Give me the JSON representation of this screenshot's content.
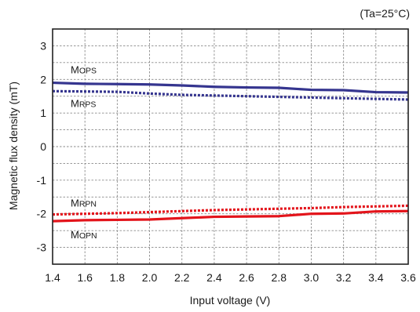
{
  "chart_data": {
    "type": "line",
    "condition_label": "(Ta=25°C)",
    "xlabel": "Input voltage (V)",
    "ylabel": "Magnetic flux density (mT)",
    "xlim": [
      1.4,
      3.6
    ],
    "ylim": [
      -3.5,
      3.5
    ],
    "xticks": [
      "1.4",
      "1.6",
      "1.8",
      "2.0",
      "2.2",
      "2.4",
      "2.6",
      "2.8",
      "3.0",
      "3.2",
      "3.4",
      "3.6"
    ],
    "yticks": [
      "-3",
      "-2",
      "-1",
      "0",
      "1",
      "2",
      "3"
    ],
    "grid": true,
    "x": [
      1.4,
      1.6,
      1.8,
      2.0,
      2.2,
      2.4,
      2.6,
      2.8,
      3.0,
      3.2,
      3.4,
      3.6
    ],
    "series": [
      {
        "name": "MOPS",
        "label_first": "M",
        "label_rest": "OPS",
        "color": "#35358f",
        "style": "solid",
        "values": [
          1.9,
          1.87,
          1.86,
          1.85,
          1.82,
          1.78,
          1.76,
          1.75,
          1.69,
          1.68,
          1.62,
          1.61
        ]
      },
      {
        "name": "MRPS",
        "label_first": "M",
        "label_rest": "RPS",
        "color": "#35358f",
        "style": "dotted",
        "values": [
          1.65,
          1.64,
          1.63,
          1.58,
          1.54,
          1.52,
          1.5,
          1.48,
          1.46,
          1.44,
          1.42,
          1.4
        ]
      },
      {
        "name": "MRPN",
        "label_first": "M",
        "label_rest": "RPN",
        "color": "#e3141b",
        "style": "dotted",
        "values": [
          -2.02,
          -2.0,
          -1.98,
          -1.95,
          -1.92,
          -1.89,
          -1.87,
          -1.85,
          -1.83,
          -1.8,
          -1.78,
          -1.76
        ]
      },
      {
        "name": "MOPN",
        "label_first": "M",
        "label_rest": "OPN",
        "color": "#e3141b",
        "style": "solid",
        "values": [
          -2.22,
          -2.19,
          -2.18,
          -2.17,
          -2.13,
          -2.09,
          -2.08,
          -2.07,
          -2.0,
          -1.99,
          -1.93,
          -1.92
        ]
      }
    ]
  }
}
